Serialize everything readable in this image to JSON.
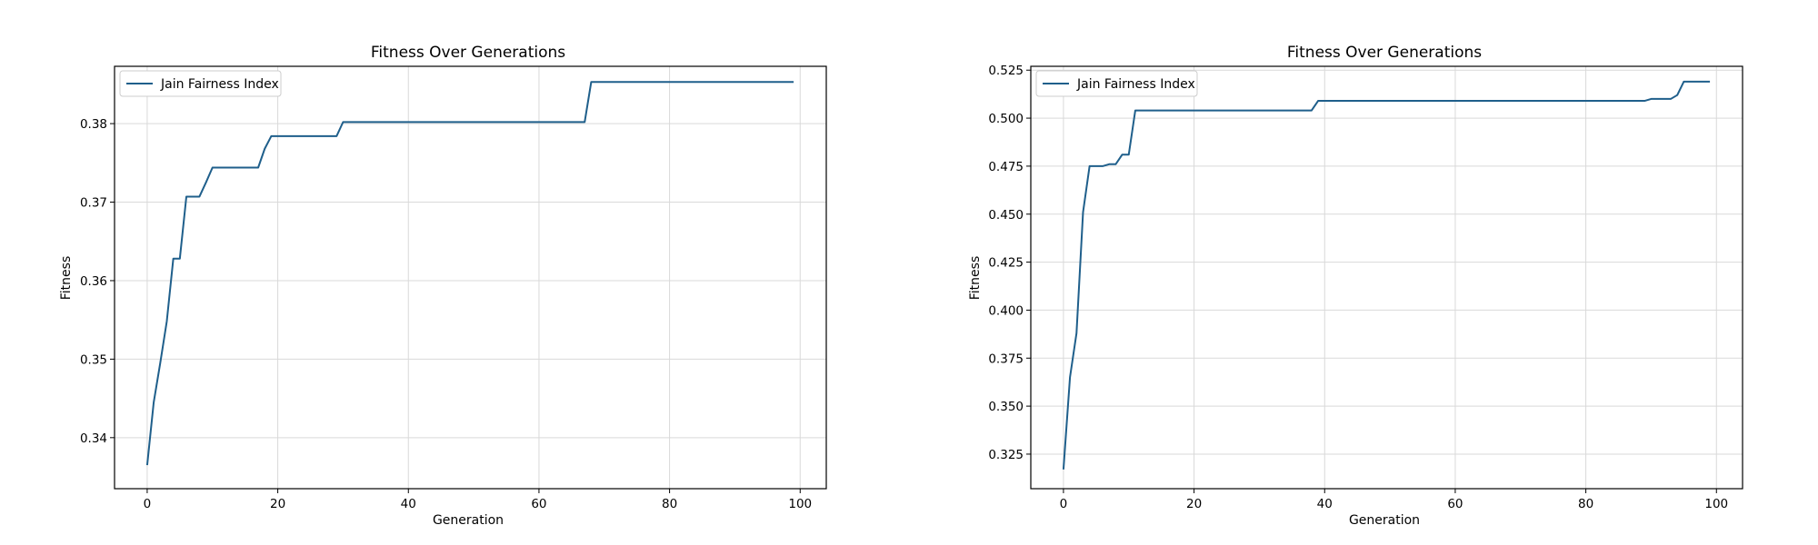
{
  "style": {
    "line_color": "#1f5f8b",
    "grid_color": "#d9d9d9",
    "axes_color": "#000000",
    "background": "#ffffff"
  },
  "chart_data": [
    {
      "type": "line",
      "title": "Fitness Over Generations",
      "xlabel": "Generation",
      "ylabel": "Fitness",
      "xlim": [
        -5,
        104
      ],
      "ylim": [
        0.3335,
        0.3873
      ],
      "xticks": [
        0,
        20,
        40,
        60,
        80,
        100
      ],
      "yticks": [
        0.34,
        0.35,
        0.36,
        0.37,
        0.38
      ],
      "ytick_labels": [
        "0.34",
        "0.35",
        "0.36",
        "0.37",
        "0.38"
      ],
      "grid": true,
      "legend_position": "top-left",
      "series": [
        {
          "name": "Jain Fairness Index",
          "x": [
            0,
            1,
            2,
            3,
            4,
            5,
            6,
            7,
            8,
            9,
            10,
            11,
            12,
            13,
            14,
            15,
            16,
            17,
            18,
            19,
            20,
            21,
            22,
            23,
            24,
            25,
            26,
            27,
            28,
            29,
            30,
            35,
            40,
            45,
            50,
            55,
            60,
            65,
            67,
            68,
            70,
            75,
            80,
            85,
            90,
            95,
            99
          ],
          "values": [
            0.3365,
            0.3445,
            0.3495,
            0.3548,
            0.3628,
            0.3628,
            0.3707,
            0.3707,
            0.3707,
            0.3725,
            0.3744,
            0.3744,
            0.3744,
            0.3744,
            0.3744,
            0.3744,
            0.3744,
            0.3744,
            0.3768,
            0.3784,
            0.3784,
            0.3784,
            0.3784,
            0.3784,
            0.3784,
            0.3784,
            0.3784,
            0.3784,
            0.3784,
            0.3784,
            0.3802,
            0.3802,
            0.3802,
            0.3802,
            0.3802,
            0.3802,
            0.3802,
            0.3802,
            0.3802,
            0.3853,
            0.3853,
            0.3853,
            0.3853,
            0.3853,
            0.3853,
            0.3853,
            0.3853
          ]
        }
      ]
    },
    {
      "type": "line",
      "title": "Fitness Over Generations",
      "xlabel": "Generation",
      "ylabel": "Fitness",
      "xlim": [
        -5,
        104
      ],
      "ylim": [
        0.307,
        0.527
      ],
      "xticks": [
        0,
        20,
        40,
        60,
        80,
        100
      ],
      "yticks": [
        0.325,
        0.35,
        0.375,
        0.4,
        0.425,
        0.45,
        0.475,
        0.5,
        0.525
      ],
      "ytick_labels": [
        "0.325",
        "0.350",
        "0.375",
        "0.400",
        "0.425",
        "0.450",
        "0.475",
        "0.500",
        "0.525"
      ],
      "grid": true,
      "legend_position": "top-left",
      "series": [
        {
          "name": "Jain Fairness Index",
          "x": [
            0,
            1,
            2,
            3,
            4,
            5,
            6,
            7,
            8,
            9,
            10,
            11,
            12,
            15,
            20,
            25,
            30,
            35,
            38,
            39,
            40,
            45,
            50,
            60,
            70,
            80,
            88,
            89,
            90,
            91,
            92,
            93,
            94,
            95,
            96,
            97,
            98,
            99
          ],
          "values": [
            0.317,
            0.365,
            0.388,
            0.451,
            0.475,
            0.475,
            0.475,
            0.476,
            0.476,
            0.481,
            0.481,
            0.504,
            0.504,
            0.504,
            0.504,
            0.504,
            0.504,
            0.504,
            0.504,
            0.509,
            0.509,
            0.509,
            0.509,
            0.509,
            0.509,
            0.509,
            0.509,
            0.509,
            0.51,
            0.51,
            0.51,
            0.51,
            0.512,
            0.519,
            0.519,
            0.519,
            0.519,
            0.519
          ]
        }
      ]
    }
  ]
}
